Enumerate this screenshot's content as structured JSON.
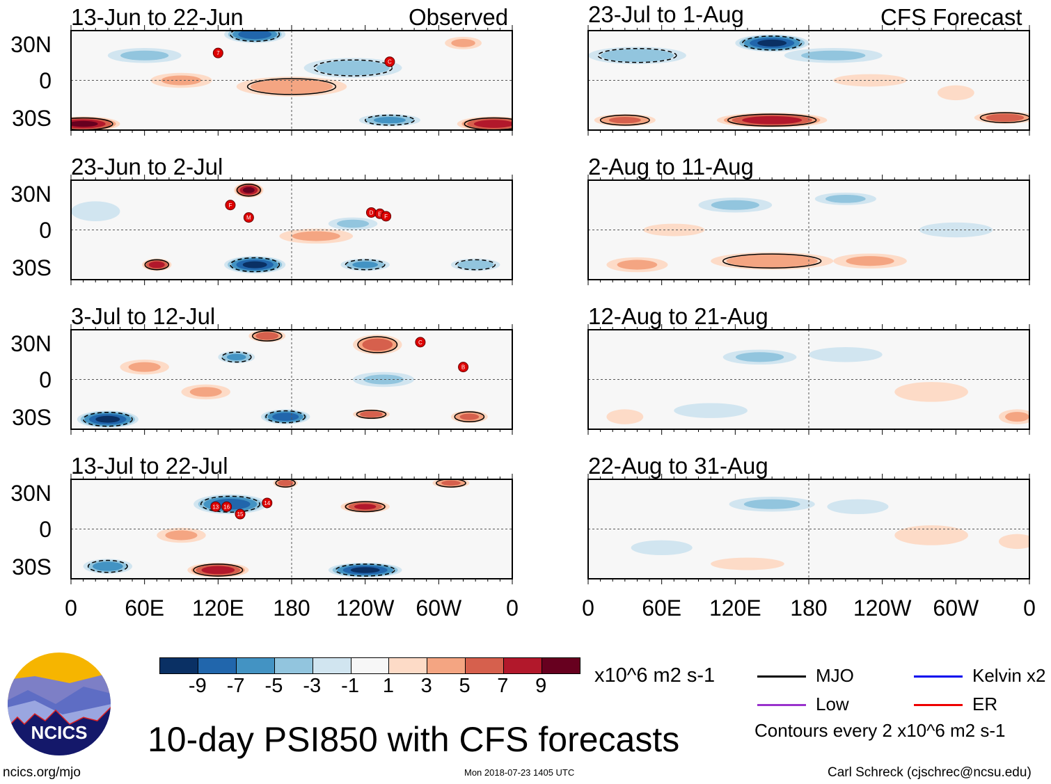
{
  "title": "10-day PSI850 with CFS forecasts",
  "column_labels": {
    "observed": "Observed",
    "forecast": "CFS Forecast"
  },
  "lat_labels": [
    "30N",
    "0",
    "30S"
  ],
  "lon_labels": [
    "0",
    "60E",
    "120E",
    "180",
    "120W",
    "60W",
    "0"
  ],
  "colorbar": {
    "labels": [
      "-9",
      "-7",
      "-5",
      "-3",
      "-1",
      "1",
      "3",
      "5",
      "7",
      "9"
    ],
    "colors": [
      "#0a3064",
      "#2166ac",
      "#4393c3",
      "#92c5de",
      "#d1e5f0",
      "#f7f7f7",
      "#fddbc7",
      "#f4a582",
      "#d6604d",
      "#b2182b",
      "#67001f"
    ],
    "units": "x10^6 m2 s-1"
  },
  "legend": {
    "items": [
      {
        "label": "MJO",
        "color": "#000000"
      },
      {
        "label": "Kelvin x2",
        "color": "#0000ee"
      },
      {
        "label": "Low",
        "color": "#9932cc"
      },
      {
        "label": "ER",
        "color": "#ee0000"
      }
    ],
    "contour_note": "Contours every 2 x10^6 m2 s-1"
  },
  "footer": {
    "url": "ncics.org/mjo",
    "timestamp": "Mon 2018-07-23 1405 UTC",
    "author": "Carl Schreck (cjschrec@ncsu.edu)"
  },
  "logo_text": "NCICS",
  "chart_data": [
    {
      "type": "heatmap",
      "title": "13-Jun to 22-Jun",
      "anomalies": [
        [
          150,
          37,
          -8,
          25,
          7
        ],
        [
          60,
          20,
          -3,
          30,
          6
        ],
        [
          230,
          10,
          -4,
          40,
          8
        ],
        [
          180,
          -5,
          4,
          45,
          8
        ],
        [
          10,
          -35,
          9,
          30,
          6
        ],
        [
          345,
          -35,
          8,
          30,
          6
        ],
        [
          260,
          -32,
          -5,
          25,
          5
        ],
        [
          90,
          0,
          3,
          25,
          6
        ],
        [
          320,
          30,
          3,
          15,
          5
        ]
      ],
      "storms": [
        {
          "label": "7",
          "lon": 120,
          "lat": 22
        },
        {
          "label": "C",
          "lon": 260,
          "lat": 15
        }
      ]
    },
    {
      "type": "heatmap",
      "title": "23-Jun to 2-Jul",
      "anomalies": [
        [
          145,
          32,
          9,
          12,
          6
        ],
        [
          70,
          -28,
          8,
          12,
          5
        ],
        [
          150,
          -28,
          -9,
          25,
          7
        ],
        [
          240,
          -28,
          -5,
          20,
          5
        ],
        [
          330,
          -28,
          -4,
          20,
          5
        ],
        [
          200,
          -5,
          3,
          30,
          6
        ],
        [
          230,
          5,
          -3,
          20,
          5
        ],
        [
          20,
          15,
          -2,
          20,
          8
        ]
      ],
      "storms": [
        {
          "label": "F",
          "lon": 130,
          "lat": 20
        },
        {
          "label": "M",
          "lon": 145,
          "lat": 10
        },
        {
          "label": "D",
          "lon": 245,
          "lat": 14
        },
        {
          "label": "E",
          "lon": 252,
          "lat": 13
        },
        {
          "label": "F",
          "lon": 257,
          "lat": 11
        }
      ]
    },
    {
      "type": "heatmap",
      "title": "3-Jul to 12-Jul",
      "anomalies": [
        [
          30,
          -32,
          -9,
          25,
          7
        ],
        [
          175,
          -30,
          -8,
          20,
          6
        ],
        [
          245,
          -28,
          6,
          15,
          4
        ],
        [
          325,
          -30,
          5,
          15,
          5
        ],
        [
          250,
          28,
          6,
          20,
          8
        ],
        [
          160,
          35,
          6,
          15,
          5
        ],
        [
          135,
          18,
          -5,
          15,
          5
        ],
        [
          255,
          0,
          -3,
          25,
          6
        ],
        [
          60,
          10,
          3,
          20,
          6
        ],
        [
          110,
          -10,
          3,
          20,
          6
        ]
      ],
      "storms": [
        {
          "label": "C",
          "lon": 285,
          "lat": 30
        },
        {
          "label": "B",
          "lon": 320,
          "lat": 10
        }
      ]
    },
    {
      "type": "heatmap",
      "title": "13-Jul to 22-Jul",
      "anomalies": [
        [
          130,
          20,
          -8,
          30,
          8
        ],
        [
          240,
          18,
          7,
          20,
          5
        ],
        [
          120,
          -33,
          8,
          25,
          6
        ],
        [
          240,
          -33,
          -9,
          30,
          6
        ],
        [
          30,
          -30,
          -6,
          20,
          6
        ],
        [
          175,
          37,
          6,
          10,
          4
        ],
        [
          310,
          37,
          5,
          15,
          4
        ],
        [
          90,
          -5,
          3,
          20,
          6
        ]
      ],
      "storms": [
        {
          "label": "13",
          "lon": 118,
          "lat": 18
        },
        {
          "label": "16",
          "lon": 127,
          "lat": 18
        },
        {
          "label": "15",
          "lon": 138,
          "lat": 12
        },
        {
          "label": "14",
          "lon": 160,
          "lat": 21
        }
      ]
    },
    {
      "type": "heatmap",
      "title": "23-Jul to 1-Aug",
      "anomalies": [
        [
          150,
          30,
          -9,
          30,
          7
        ],
        [
          40,
          20,
          -4,
          40,
          7
        ],
        [
          200,
          20,
          -3,
          40,
          6
        ],
        [
          150,
          -32,
          8,
          45,
          6
        ],
        [
          30,
          -32,
          5,
          25,
          5
        ],
        [
          340,
          -30,
          6,
          25,
          5
        ],
        [
          300,
          -10,
          2,
          15,
          6
        ],
        [
          230,
          0,
          2,
          30,
          5
        ]
      ],
      "storms": []
    },
    {
      "type": "heatmap",
      "title": "2-Aug to 11-Aug",
      "anomalies": [
        [
          150,
          -25,
          4,
          50,
          7
        ],
        [
          40,
          -28,
          3,
          25,
          6
        ],
        [
          230,
          -25,
          3,
          30,
          6
        ],
        [
          120,
          20,
          -3,
          30,
          6
        ],
        [
          210,
          25,
          -3,
          25,
          5
        ],
        [
          300,
          0,
          -2,
          30,
          6
        ],
        [
          70,
          0,
          2,
          25,
          5
        ]
      ],
      "storms": []
    },
    {
      "type": "heatmap",
      "title": "12-Aug to 21-Aug",
      "anomalies": [
        [
          140,
          18,
          -3,
          30,
          6
        ],
        [
          210,
          20,
          -2,
          30,
          6
        ],
        [
          280,
          -10,
          2,
          30,
          8
        ],
        [
          100,
          -25,
          -2,
          30,
          6
        ],
        [
          350,
          -30,
          3,
          15,
          6
        ],
        [
          30,
          -30,
          2,
          15,
          6
        ]
      ],
      "storms": []
    },
    {
      "type": "heatmap",
      "title": "22-Aug to 31-Aug",
      "anomalies": [
        [
          150,
          20,
          -3,
          35,
          6
        ],
        [
          220,
          18,
          -2,
          25,
          6
        ],
        [
          60,
          -15,
          -2,
          25,
          6
        ],
        [
          130,
          -28,
          2,
          30,
          5
        ],
        [
          280,
          -5,
          2,
          30,
          8
        ],
        [
          350,
          -10,
          2,
          15,
          6
        ]
      ],
      "storms": []
    }
  ]
}
